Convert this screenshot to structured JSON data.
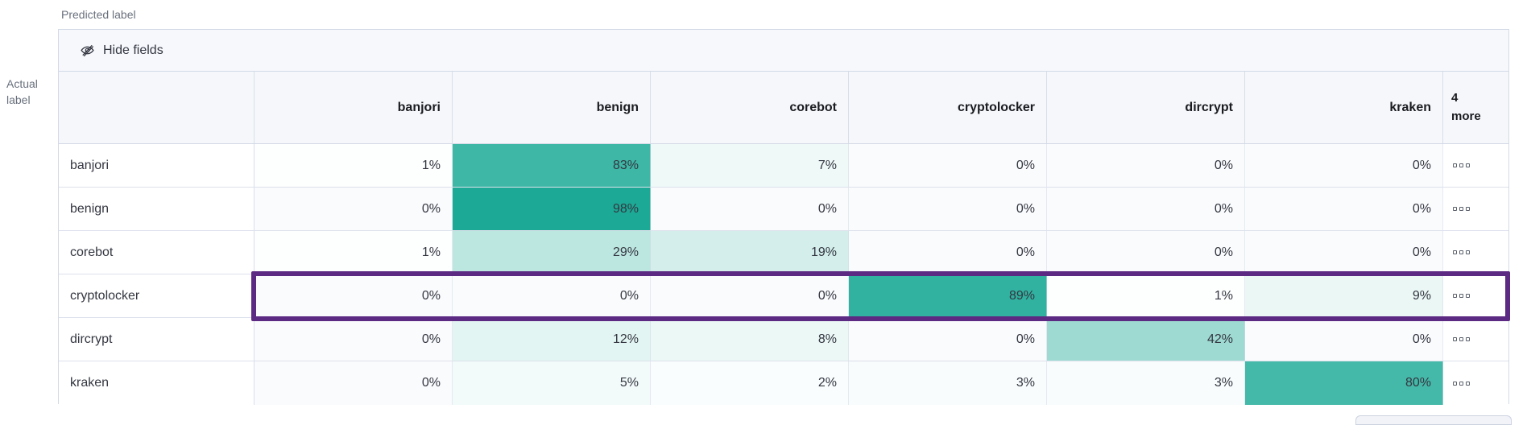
{
  "axes": {
    "predicted": "Predicted label",
    "actual_line1": "Actual",
    "actual_line2": "label"
  },
  "toolbar": {
    "hide_fields_label": "Hide fields"
  },
  "columns": [
    "banjori",
    "benign",
    "corebot",
    "cryptolocker",
    "dircrypt",
    "kraken"
  ],
  "more_column": {
    "line1": "4",
    "line2": "more"
  },
  "rows": [
    {
      "label": "banjori",
      "values": [
        1,
        83,
        7,
        0,
        0,
        0
      ]
    },
    {
      "label": "benign",
      "values": [
        0,
        98,
        0,
        0,
        0,
        0
      ]
    },
    {
      "label": "corebot",
      "values": [
        1,
        29,
        19,
        0,
        0,
        0
      ]
    },
    {
      "label": "cryptolocker",
      "values": [
        0,
        0,
        0,
        89,
        1,
        9
      ]
    },
    {
      "label": "dircrypt",
      "values": [
        0,
        12,
        8,
        0,
        42,
        0
      ]
    },
    {
      "label": "kraken",
      "values": [
        0,
        5,
        2,
        3,
        3,
        80
      ]
    }
  ],
  "value_suffix": "%",
  "highlight": {
    "row_label": "dircrypt",
    "color": "#5d2a83"
  },
  "colors": {
    "heat_base": "#17a894",
    "zero_cell": "#fafbfd",
    "header_bg": "#f5f7fa",
    "toolbar_bg": "#f7f8fc",
    "border": "#d3dae6",
    "text": "#343741",
    "muted_text": "#69707d"
  },
  "chart_data": {
    "type": "heatmap",
    "title": "Confusion matrix (normalized, %)",
    "xlabel": "Predicted label",
    "ylabel": "Actual label",
    "x": [
      "banjori",
      "benign",
      "corebot",
      "cryptolocker",
      "dircrypt",
      "kraken"
    ],
    "y": [
      "banjori",
      "benign",
      "corebot",
      "cryptolocker",
      "dircrypt",
      "kraken"
    ],
    "matrix": [
      [
        1,
        83,
        7,
        0,
        0,
        0
      ],
      [
        0,
        98,
        0,
        0,
        0,
        0
      ],
      [
        1,
        29,
        19,
        0,
        0,
        0
      ],
      [
        0,
        0,
        0,
        89,
        1,
        9
      ],
      [
        0,
        12,
        8,
        0,
        42,
        0
      ],
      [
        0,
        5,
        2,
        3,
        3,
        80
      ]
    ],
    "hidden_columns_count": 4,
    "highlighted_row": "dircrypt",
    "value_range": [
      0,
      100
    ]
  }
}
